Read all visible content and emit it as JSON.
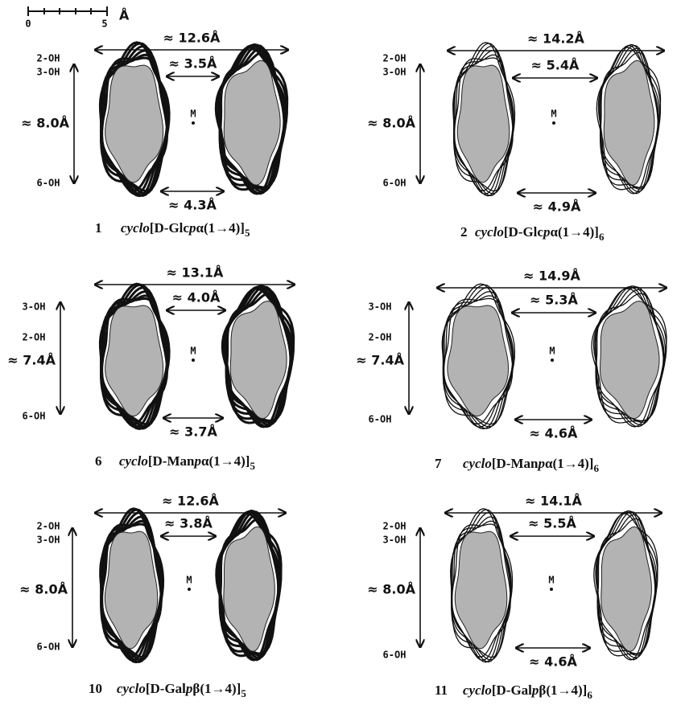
{
  "scale_bar": {
    "start": "0",
    "end": "5",
    "unit": "Å"
  },
  "center_label": "M",
  "panels": [
    {
      "number": "1",
      "prefix": "cyclo",
      "sugar": "[D-Glc",
      "ring": "p",
      "linkage": "α(1→4)]",
      "n": "5",
      "width": "≈ 12.6Å",
      "inner_top": "≈ 3.5Å",
      "inner_bottom": "≈ 4.3Å",
      "height": "≈ 8.0Å",
      "oh_labels": [
        "2-OH",
        "3-OH",
        "6-OH"
      ]
    },
    {
      "number": "2",
      "prefix": "cyclo",
      "sugar": "[D-Glc",
      "ring": "p",
      "linkage": "α(1→4)]",
      "n": "6",
      "width": "≈ 14.2Å",
      "inner_top": "≈ 5.4Å",
      "inner_bottom": "≈ 4.9Å",
      "height": "≈ 8.0Å",
      "oh_labels": [
        "2-OH",
        "3-OH",
        "6-OH"
      ]
    },
    {
      "number": "6",
      "prefix": "cyclo",
      "sugar": "[D-Man",
      "ring": "p",
      "linkage": "α(1→4)]",
      "n": "5",
      "width": "≈ 13.1Å",
      "inner_top": "≈ 4.0Å",
      "inner_bottom": "≈ 3.7Å",
      "height": "≈ 7.4Å",
      "oh_labels": [
        "3-OH",
        "2-OH",
        "6-OH"
      ]
    },
    {
      "number": "7",
      "prefix": "cyclo",
      "sugar": "[D-Man",
      "ring": "p",
      "linkage": "α(1→4)]",
      "n": "6",
      "width": "≈ 14.9Å",
      "inner_top": "≈ 5.3Å",
      "inner_bottom": "≈ 4.6Å",
      "height": "≈ 7.4Å",
      "oh_labels": [
        "3-OH",
        "2-OH",
        "6-OH"
      ]
    },
    {
      "number": "10",
      "prefix": "cyclo",
      "sugar": "[D-Gal",
      "ring": "p",
      "linkage": "β(1→4)]",
      "n": "5",
      "width": "≈ 12.6Å",
      "inner_top": "≈ 3.8Å",
      "height": "≈ 8.0Å",
      "oh_labels": [
        "2-OH",
        "3-OH",
        "6-OH"
      ]
    },
    {
      "number": "11",
      "prefix": "cyclo",
      "sugar": "[D-Gal",
      "ring": "p",
      "linkage": "β(1→4)]",
      "n": "6",
      "width": "≈ 14.1Å",
      "inner_top": "≈ 5.5Å",
      "inner_bottom": "≈ 4.6Å",
      "height": "≈ 8.0Å",
      "oh_labels": [
        "2-OH",
        "3-OH",
        "6-OH"
      ]
    }
  ]
}
